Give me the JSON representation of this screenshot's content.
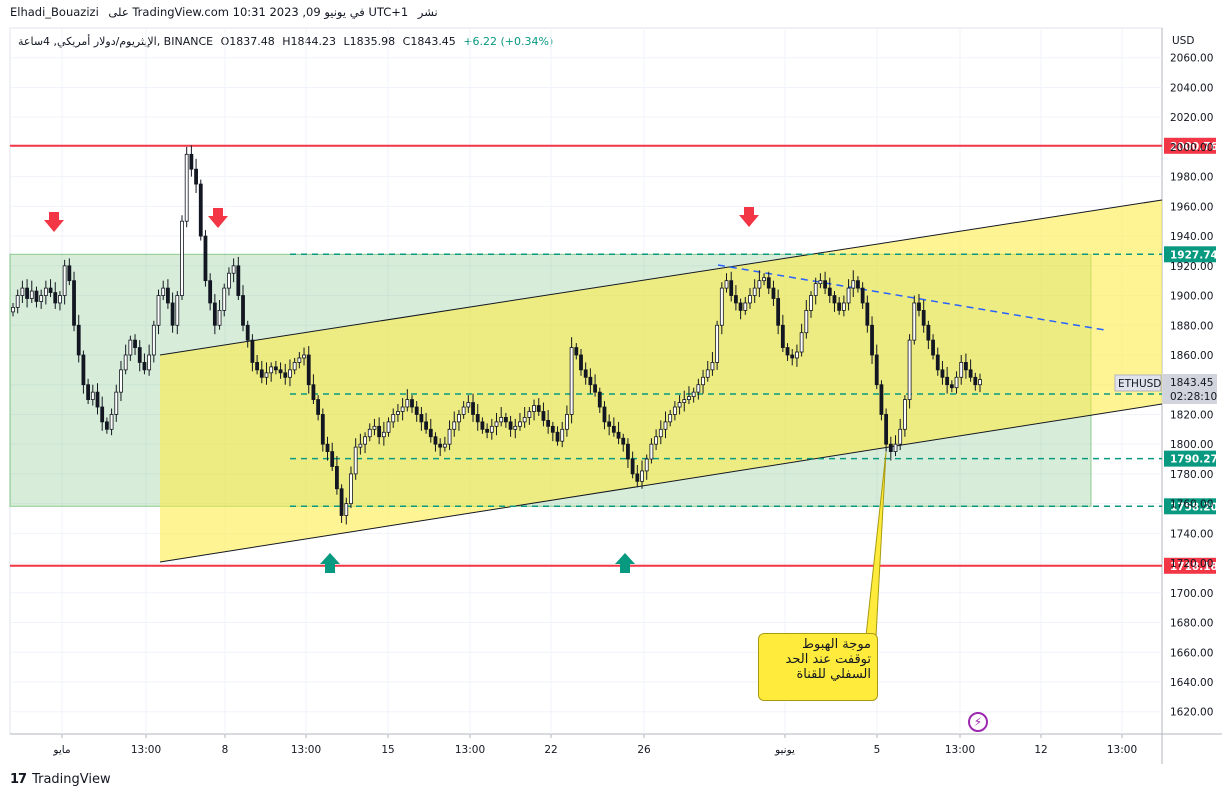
{
  "header": {
    "publisher": "Elhadi_Bouazizi",
    "site_text": "على TradingView.com 10:31 2023 ,09 في يونيو UTC+1",
    "publish_word": "نشر"
  },
  "legend": {
    "symbol": "الإيثريوم/دولار أمريكي, 4ساعة, BINANCE",
    "open": "O1837.48",
    "high": "H1844.23",
    "low": "L1835.98",
    "close": "C1843.45",
    "change": "+6.22 (+0.34%)"
  },
  "brand": {
    "logo": "17",
    "name": "TradingView"
  },
  "note": {
    "line1": "موجة الهبوط",
    "line2": "توقفت عند الحد",
    "line3": "السفلي للقناة"
  },
  "chart_data": {
    "type": "line",
    "series_type": "candlestick",
    "symbol": "ETHUSD",
    "currency": "USD",
    "y_range": [
      1605,
      2080
    ],
    "y_ticks": [
      1620,
      1640,
      1660,
      1680,
      1700,
      1720,
      1740,
      1760,
      1780,
      1800,
      1820,
      1840,
      1860,
      1880,
      1900,
      1920,
      1940,
      1960,
      1980,
      2000,
      2020,
      2040,
      2060
    ],
    "x_ticks": [
      "مايو",
      "13:00",
      "8",
      "13:00",
      "15",
      "13:00",
      "22",
      "26",
      "يونيو",
      "5",
      "13:00",
      "12",
      "13:00"
    ],
    "price_tags": [
      {
        "label": "2000.76",
        "value": 2000.76,
        "color": "#f23645"
      },
      {
        "label": "1927.74",
        "value": 1927.74,
        "color": "#089981"
      },
      {
        "label": "1833.77",
        "value": 1833.77,
        "color": "#089981"
      },
      {
        "label": "1790.27",
        "value": 1790.27,
        "color": "#089981"
      },
      {
        "label": "1758.20",
        "value": 1758.2,
        "color": "#089981"
      },
      {
        "label": "1718.18",
        "value": 1718.18,
        "color": "#f23645"
      }
    ],
    "last_price": {
      "symbol": "ETHUSD",
      "price": "1843.45",
      "countdown": "02:28:10"
    },
    "resistance": 2000.76,
    "support": 1718.18,
    "range_zone": [
      1758.2,
      1927.74
    ],
    "closes": [
      1892,
      1900,
      1905,
      1898,
      1903,
      1896,
      1900,
      1905,
      1902,
      1895,
      1900,
      1920,
      1910,
      1880,
      1860,
      1840,
      1830,
      1835,
      1825,
      1815,
      1810,
      1820,
      1835,
      1850,
      1860,
      1870,
      1865,
      1855,
      1850,
      1860,
      1880,
      1900,
      1905,
      1895,
      1880,
      1900,
      1950,
      1995,
      1985,
      1975,
      1940,
      1910,
      1895,
      1880,
      1890,
      1905,
      1915,
      1920,
      1900,
      1880,
      1870,
      1855,
      1850,
      1845,
      1848,
      1852,
      1850,
      1848,
      1845,
      1850,
      1855,
      1858,
      1860,
      1840,
      1830,
      1820,
      1800,
      1795,
      1785,
      1770,
      1752,
      1760,
      1780,
      1798,
      1800,
      1805,
      1810,
      1812,
      1805,
      1808,
      1815,
      1820,
      1822,
      1825,
      1830,
      1825,
      1820,
      1815,
      1810,
      1805,
      1800,
      1798,
      1800,
      1810,
      1815,
      1820,
      1825,
      1828,
      1820,
      1815,
      1810,
      1808,
      1812,
      1815,
      1818,
      1815,
      1810,
      1812,
      1815,
      1818,
      1822,
      1826,
      1822,
      1816,
      1812,
      1808,
      1802,
      1810,
      1820,
      1865,
      1860,
      1850,
      1845,
      1840,
      1835,
      1825,
      1815,
      1812,
      1808,
      1804,
      1800,
      1790,
      1780,
      1775,
      1782,
      1790,
      1800,
      1805,
      1810,
      1815,
      1820,
      1825,
      1828,
      1830,
      1832,
      1835,
      1840,
      1845,
      1850,
      1855,
      1880,
      1905,
      1910,
      1900,
      1895,
      1890,
      1895,
      1900,
      1905,
      1910,
      1912,
      1905,
      1898,
      1880,
      1865,
      1860,
      1858,
      1862,
      1875,
      1890,
      1900,
      1908,
      1910,
      1905,
      1900,
      1895,
      1890,
      1895,
      1905,
      1910,
      1905,
      1895,
      1880,
      1860,
      1840,
      1820,
      1800,
      1795,
      1800,
      1810,
      1830,
      1870,
      1895,
      1890,
      1880,
      1870,
      1860,
      1850,
      1845,
      1840,
      1838,
      1845,
      1855,
      1850,
      1845,
      1840,
      1843.45
    ]
  },
  "ui": {
    "bolt_icon": "⚡"
  }
}
